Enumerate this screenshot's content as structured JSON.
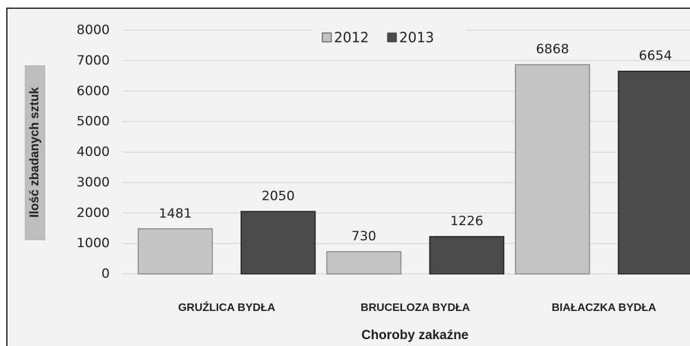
{
  "chart_data": {
    "type": "bar",
    "categories": [
      "GRUŹLICA BYDŁA",
      "BRUCELOZA BYDŁA",
      "BIAŁACZKA BYDŁA"
    ],
    "series": [
      {
        "name": "2012",
        "color": "#c4c4c4",
        "values": [
          1481,
          730,
          6868
        ]
      },
      {
        "name": "2013",
        "color": "#4a4a4a",
        "values": [
          2050,
          1226,
          6654
        ]
      }
    ],
    "ylim": [
      0,
      8000
    ],
    "yticks": [
      0,
      1000,
      2000,
      3000,
      4000,
      5000,
      6000,
      7000,
      8000
    ],
    "ylabel": "Ilość zbadanych sztuk",
    "xlabel": "Choroby zakaźne",
    "grid": true,
    "legend": "top"
  }
}
